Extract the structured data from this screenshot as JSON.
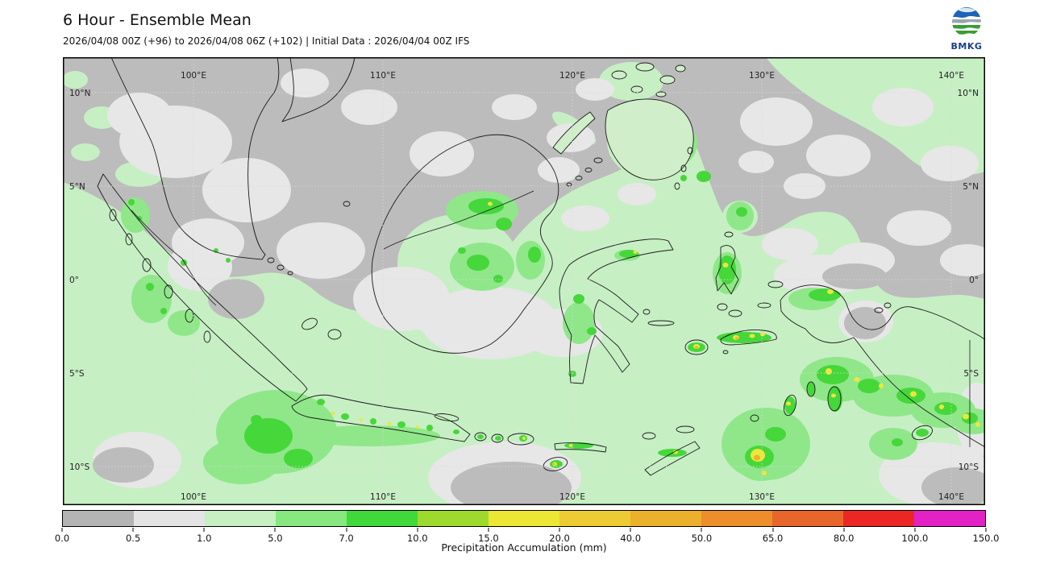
{
  "header": {
    "title": "6 Hour - Ensemble Mean",
    "subtitle": "2026/04/08 00Z (+96) to 2026/04/08 06Z (+102) | Initial Data : 2026/04/04 00Z IFS",
    "logo_text": "BMKG"
  },
  "map": {
    "lat_labels": [
      "10°N",
      "5°N",
      "0°",
      "5°S",
      "10°S"
    ],
    "lon_labels": [
      "100°E",
      "110°E",
      "120°E",
      "130°E",
      "140°E"
    ]
  },
  "colorbar": {
    "label": "Precipitation Accumulation (mm)",
    "ticks": [
      "0.0",
      "0.5",
      "1.0",
      "5.0",
      "7.0",
      "10.0",
      "15.0",
      "20.0",
      "40.0",
      "50.0",
      "65.0",
      "80.0",
      "100.0",
      "150.0"
    ],
    "colors": [
      "#b4b4b4",
      "#e4e4e4",
      "#c6efc2",
      "#86e87e",
      "#41d83b",
      "#9eda2d",
      "#ebe734",
      "#eccb35",
      "#ebb02c",
      "#ed8d2c",
      "#e9662b",
      "#ec2723",
      "#e322c5"
    ],
    "legend_levels_mm": [
      0.0,
      0.5,
      1.0,
      5.0,
      7.0,
      10.0,
      15.0,
      20.0,
      40.0,
      50.0,
      65.0,
      80.0,
      100.0,
      150.0
    ]
  }
}
